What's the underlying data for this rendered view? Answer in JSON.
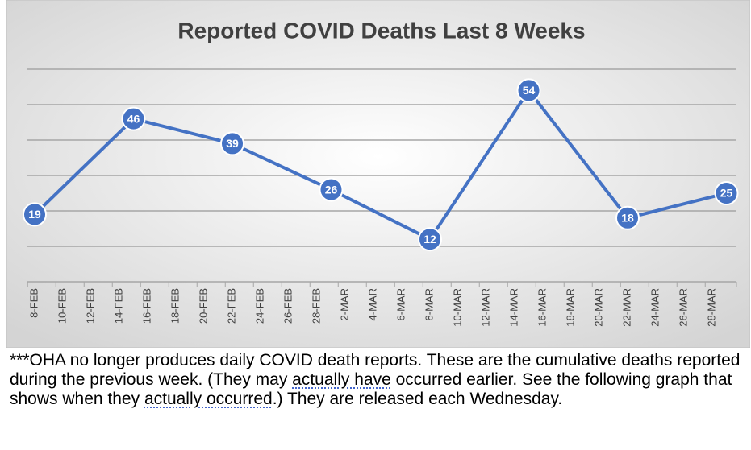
{
  "chart_data": {
    "type": "line",
    "title": "Reported COVID Deaths Last 8 Weeks",
    "categories": [
      "8-FEB",
      null,
      "10-FEB",
      null,
      "12-FEB",
      null,
      "14-FEB",
      null,
      "16-FEB",
      null,
      "18-FEB",
      null,
      "20-FEB",
      null,
      "22-FEB",
      null,
      "24-FEB",
      null,
      "26-FEB",
      null,
      "28-FEB",
      null,
      "2-MAR",
      null,
      "4-MAR",
      null,
      "6-MAR",
      null,
      "8-MAR",
      null,
      "10-MAR",
      null,
      "12-MAR",
      null,
      "14-MAR",
      null,
      "16-MAR",
      null,
      "18-MAR",
      null,
      "20-MAR",
      null,
      "22-MAR",
      null,
      "24-MAR",
      null,
      "26-MAR",
      null,
      "28-MAR",
      null
    ],
    "values": [
      19,
      null,
      null,
      null,
      null,
      null,
      null,
      46,
      null,
      null,
      null,
      null,
      null,
      null,
      39,
      null,
      null,
      null,
      null,
      null,
      null,
      26,
      null,
      null,
      null,
      null,
      null,
      null,
      12,
      null,
      null,
      null,
      null,
      null,
      null,
      54,
      null,
      null,
      null,
      null,
      null,
      null,
      18,
      null,
      null,
      null,
      null,
      null,
      null,
      25
    ],
    "color": "#4472c4",
    "ylim": [
      0,
      60
    ],
    "yticks": [
      0,
      10,
      20,
      30,
      40,
      50,
      60
    ],
    "grid": true
  },
  "note": [
    "***OHA no longer produces daily COVID death reports. These are the cumulative deaths reported during the previous week. (They may ",
    "actually have",
    " occurred earlier. See the following graph that shows when they ",
    "actually occurred",
    ".) They are released each Wednesday."
  ]
}
